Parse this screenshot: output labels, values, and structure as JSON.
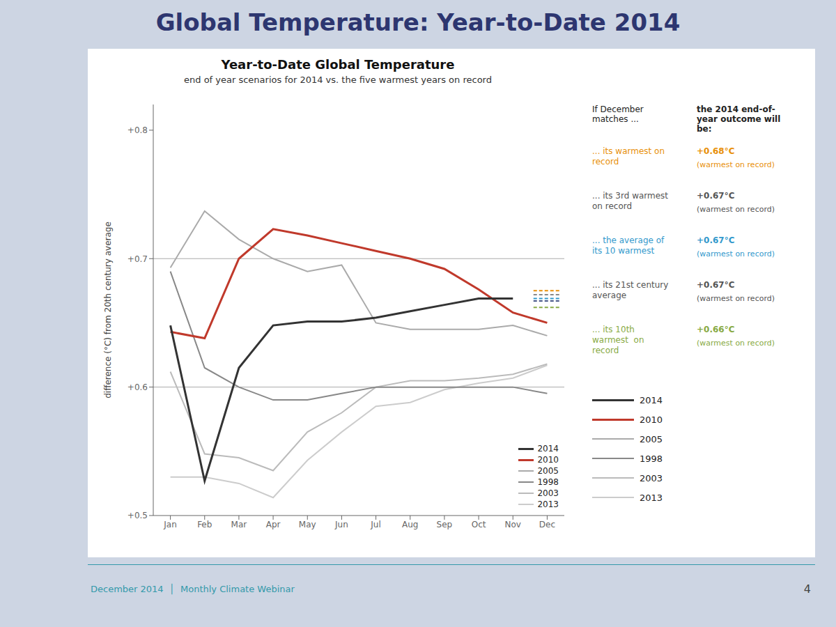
{
  "title": "Global Temperature: Year-to-Date 2014",
  "footer": [
    "December 2014  │  Monthly Climate Webinar",
    "4"
  ],
  "chart_data": {
    "type": "line",
    "title": "Year-to-Date Global Temperature",
    "subtitle": "end of year scenarios for 2014 vs. the five warmest years on record",
    "ylabel": "difference (°C)  from 20th century average",
    "categories": [
      "Jan",
      "Feb",
      "Mar",
      "Apr",
      "May",
      "Jun",
      "Jul",
      "Aug",
      "Sep",
      "Oct",
      "Nov",
      "Dec"
    ],
    "series": [
      {
        "name": "2014",
        "color": "#333333",
        "values": [
          0.648,
          0.527,
          0.615,
          0.648,
          0.651,
          0.651,
          0.654,
          0.659,
          0.664,
          0.669,
          0.669,
          null
        ]
      },
      {
        "name": "2010",
        "color": "#c0392b",
        "values": [
          0.643,
          0.638,
          0.7,
          0.723,
          0.718,
          0.712,
          0.706,
          0.7,
          0.692,
          0.676,
          0.658,
          0.65
        ]
      },
      {
        "name": "2005",
        "color": "#aaaaaa",
        "values": [
          0.693,
          0.737,
          0.715,
          0.7,
          0.69,
          0.695,
          0.65,
          0.645,
          0.645,
          0.645,
          0.648,
          0.64
        ]
      },
      {
        "name": "1998",
        "color": "#888888",
        "values": [
          0.69,
          0.615,
          0.6,
          0.59,
          0.59,
          0.595,
          0.6,
          0.6,
          0.6,
          0.6,
          0.6,
          0.595
        ]
      },
      {
        "name": "2003",
        "color": "#bbbbbb",
        "values": [
          0.612,
          0.548,
          0.545,
          0.535,
          0.565,
          0.58,
          0.6,
          0.605,
          0.605,
          0.607,
          0.61,
          0.618
        ]
      },
      {
        "name": "2013",
        "color": "#cccccc",
        "values": [
          0.53,
          0.53,
          0.525,
          0.514,
          0.543,
          0.565,
          0.585,
          0.588,
          0.598,
          0.603,
          0.607,
          0.617
        ]
      }
    ],
    "ylim": [
      0.5,
      0.82
    ],
    "yticks": [
      {
        "value": 0.5,
        "label": "+0.5"
      },
      {
        "value": 0.6,
        "label": "+0.6"
      },
      {
        "value": 0.7,
        "label": "+0.7"
      },
      {
        "value": 0.8,
        "label": "+0.8"
      }
    ],
    "grid": false,
    "legend": "lower right",
    "reference_lines": [
      0.6,
      0.7
    ],
    "scenario_lines": [
      {
        "value": 0.675,
        "color": "#e8900a"
      },
      {
        "value": 0.672,
        "color": "#888888"
      },
      {
        "value": 0.669,
        "color": "#3399cc"
      },
      {
        "value": 0.667,
        "color": "#445588"
      },
      {
        "value": 0.662,
        "color": "#88aa44"
      }
    ],
    "annotation_header": [
      "If December\nmatches ...",
      "the 2014 end-of-\nyear outcome will\nbe:"
    ],
    "annotations": [
      {
        "text": "... its warmest on\nrecord",
        "outcome": "+0.68°C",
        "note": "(warmest on record)",
        "color": "#e8900a"
      },
      {
        "text": "... its 3rd warmest\non record",
        "outcome": "+0.67°C",
        "note": "(warmest on record)",
        "color": "#555555"
      },
      {
        "text": "... the average of\nits 10 warmest",
        "outcome": "+0.67°C",
        "note": "(warmest on record)",
        "color": "#3399cc"
      },
      {
        "text": "... its 21st century\naverage",
        "outcome": "+0.67°C",
        "note": "(warmest on record)",
        "color": "#555555"
      },
      {
        "text": "... its 10th\nwarmest  on\nrecord",
        "outcome": "+0.66°C",
        "note": "(warmest on record)",
        "color": "#88aa44"
      }
    ]
  }
}
